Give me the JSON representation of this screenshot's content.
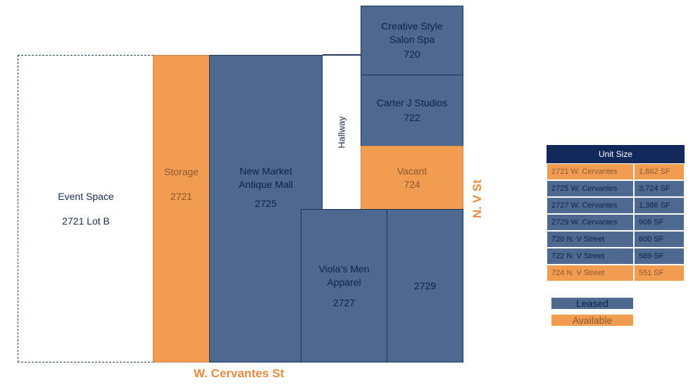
{
  "units": {
    "event_space": {
      "name": "Event Space",
      "number": "2721 Lot B"
    },
    "storage": {
      "name": "Storage",
      "number": "2721"
    },
    "new_market": {
      "name_line1": "New Market",
      "name_line2": "Antique Mall",
      "number": "2725"
    },
    "hallway": {
      "name": "Hallway"
    },
    "creative_style": {
      "name_line1": "Creative Style",
      "name_line2": "Salon Spa",
      "number": "720"
    },
    "carter_j": {
      "name": "Carter J Studios",
      "number": "722"
    },
    "vacant": {
      "name": "Vacant",
      "number": "724"
    },
    "violas": {
      "name_line1": "Viola’s Men",
      "name_line2": "Apparel",
      "number": "2727"
    },
    "unit_2729": {
      "number": "2729"
    }
  },
  "streets": {
    "horizontal": "W. Cervantes St",
    "vertical": "N. V St"
  },
  "unit_size_table": {
    "title": "Unit Size",
    "rows": [
      {
        "unit": "2721 W. Cervantes",
        "size": "1,862 SF",
        "status": "available"
      },
      {
        "unit": "2725 W. Cervantes",
        "size": "3,724 SF",
        "status": "leased"
      },
      {
        "unit": "2727 W. Cervantes",
        "size": "1,386 SF",
        "status": "leased"
      },
      {
        "unit": "2729 W. Cervantes",
        "size": "906 SF",
        "status": "leased"
      },
      {
        "unit": "720 N. V Street",
        "size": "600 SF",
        "status": "leased"
      },
      {
        "unit": "722 N. V Street",
        "size": "589 SF",
        "status": "leased"
      },
      {
        "unit": "724 N. V Street",
        "size": "551 SF",
        "status": "available"
      }
    ]
  },
  "legend": {
    "leased": "Leased",
    "available": "Available"
  },
  "colors": {
    "leased": "#4d6891",
    "available": "#f29c52",
    "header": "#13285a",
    "street_label": "#ec8b3b"
  }
}
